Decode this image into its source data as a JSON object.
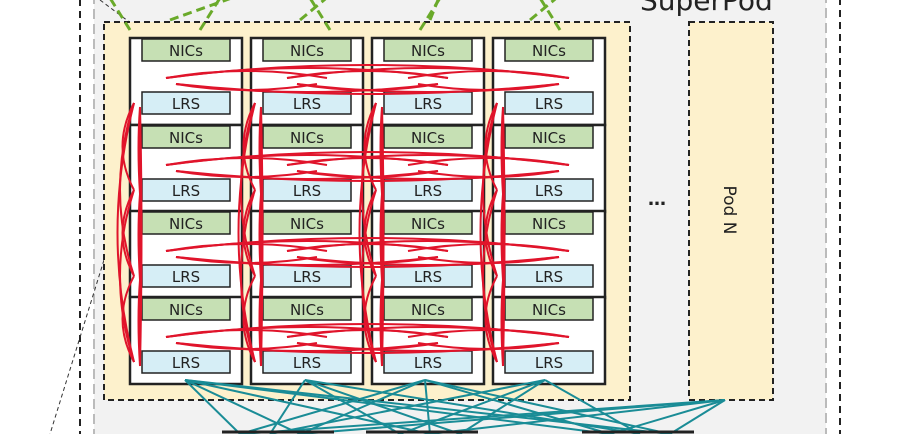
{
  "diagram": {
    "superpod_label": "SuperPod",
    "pod_n_label": "Pod  N",
    "ellipsis": "…",
    "node_top_label": "NICs",
    "node_bottom_label": "LRS",
    "grid": {
      "rows": 4,
      "cols": 4
    },
    "colors": {
      "pod_fill": "#fdf1cc",
      "superpod_fill": "#f2f2f2",
      "nic_fill": "#c6e0b4",
      "lrs_fill": "#d6eef6",
      "intra_pod_links": "#e0142b",
      "uplinks_top": "#6aaa2a",
      "uplinks_bottom": "#1a8c96"
    }
  }
}
